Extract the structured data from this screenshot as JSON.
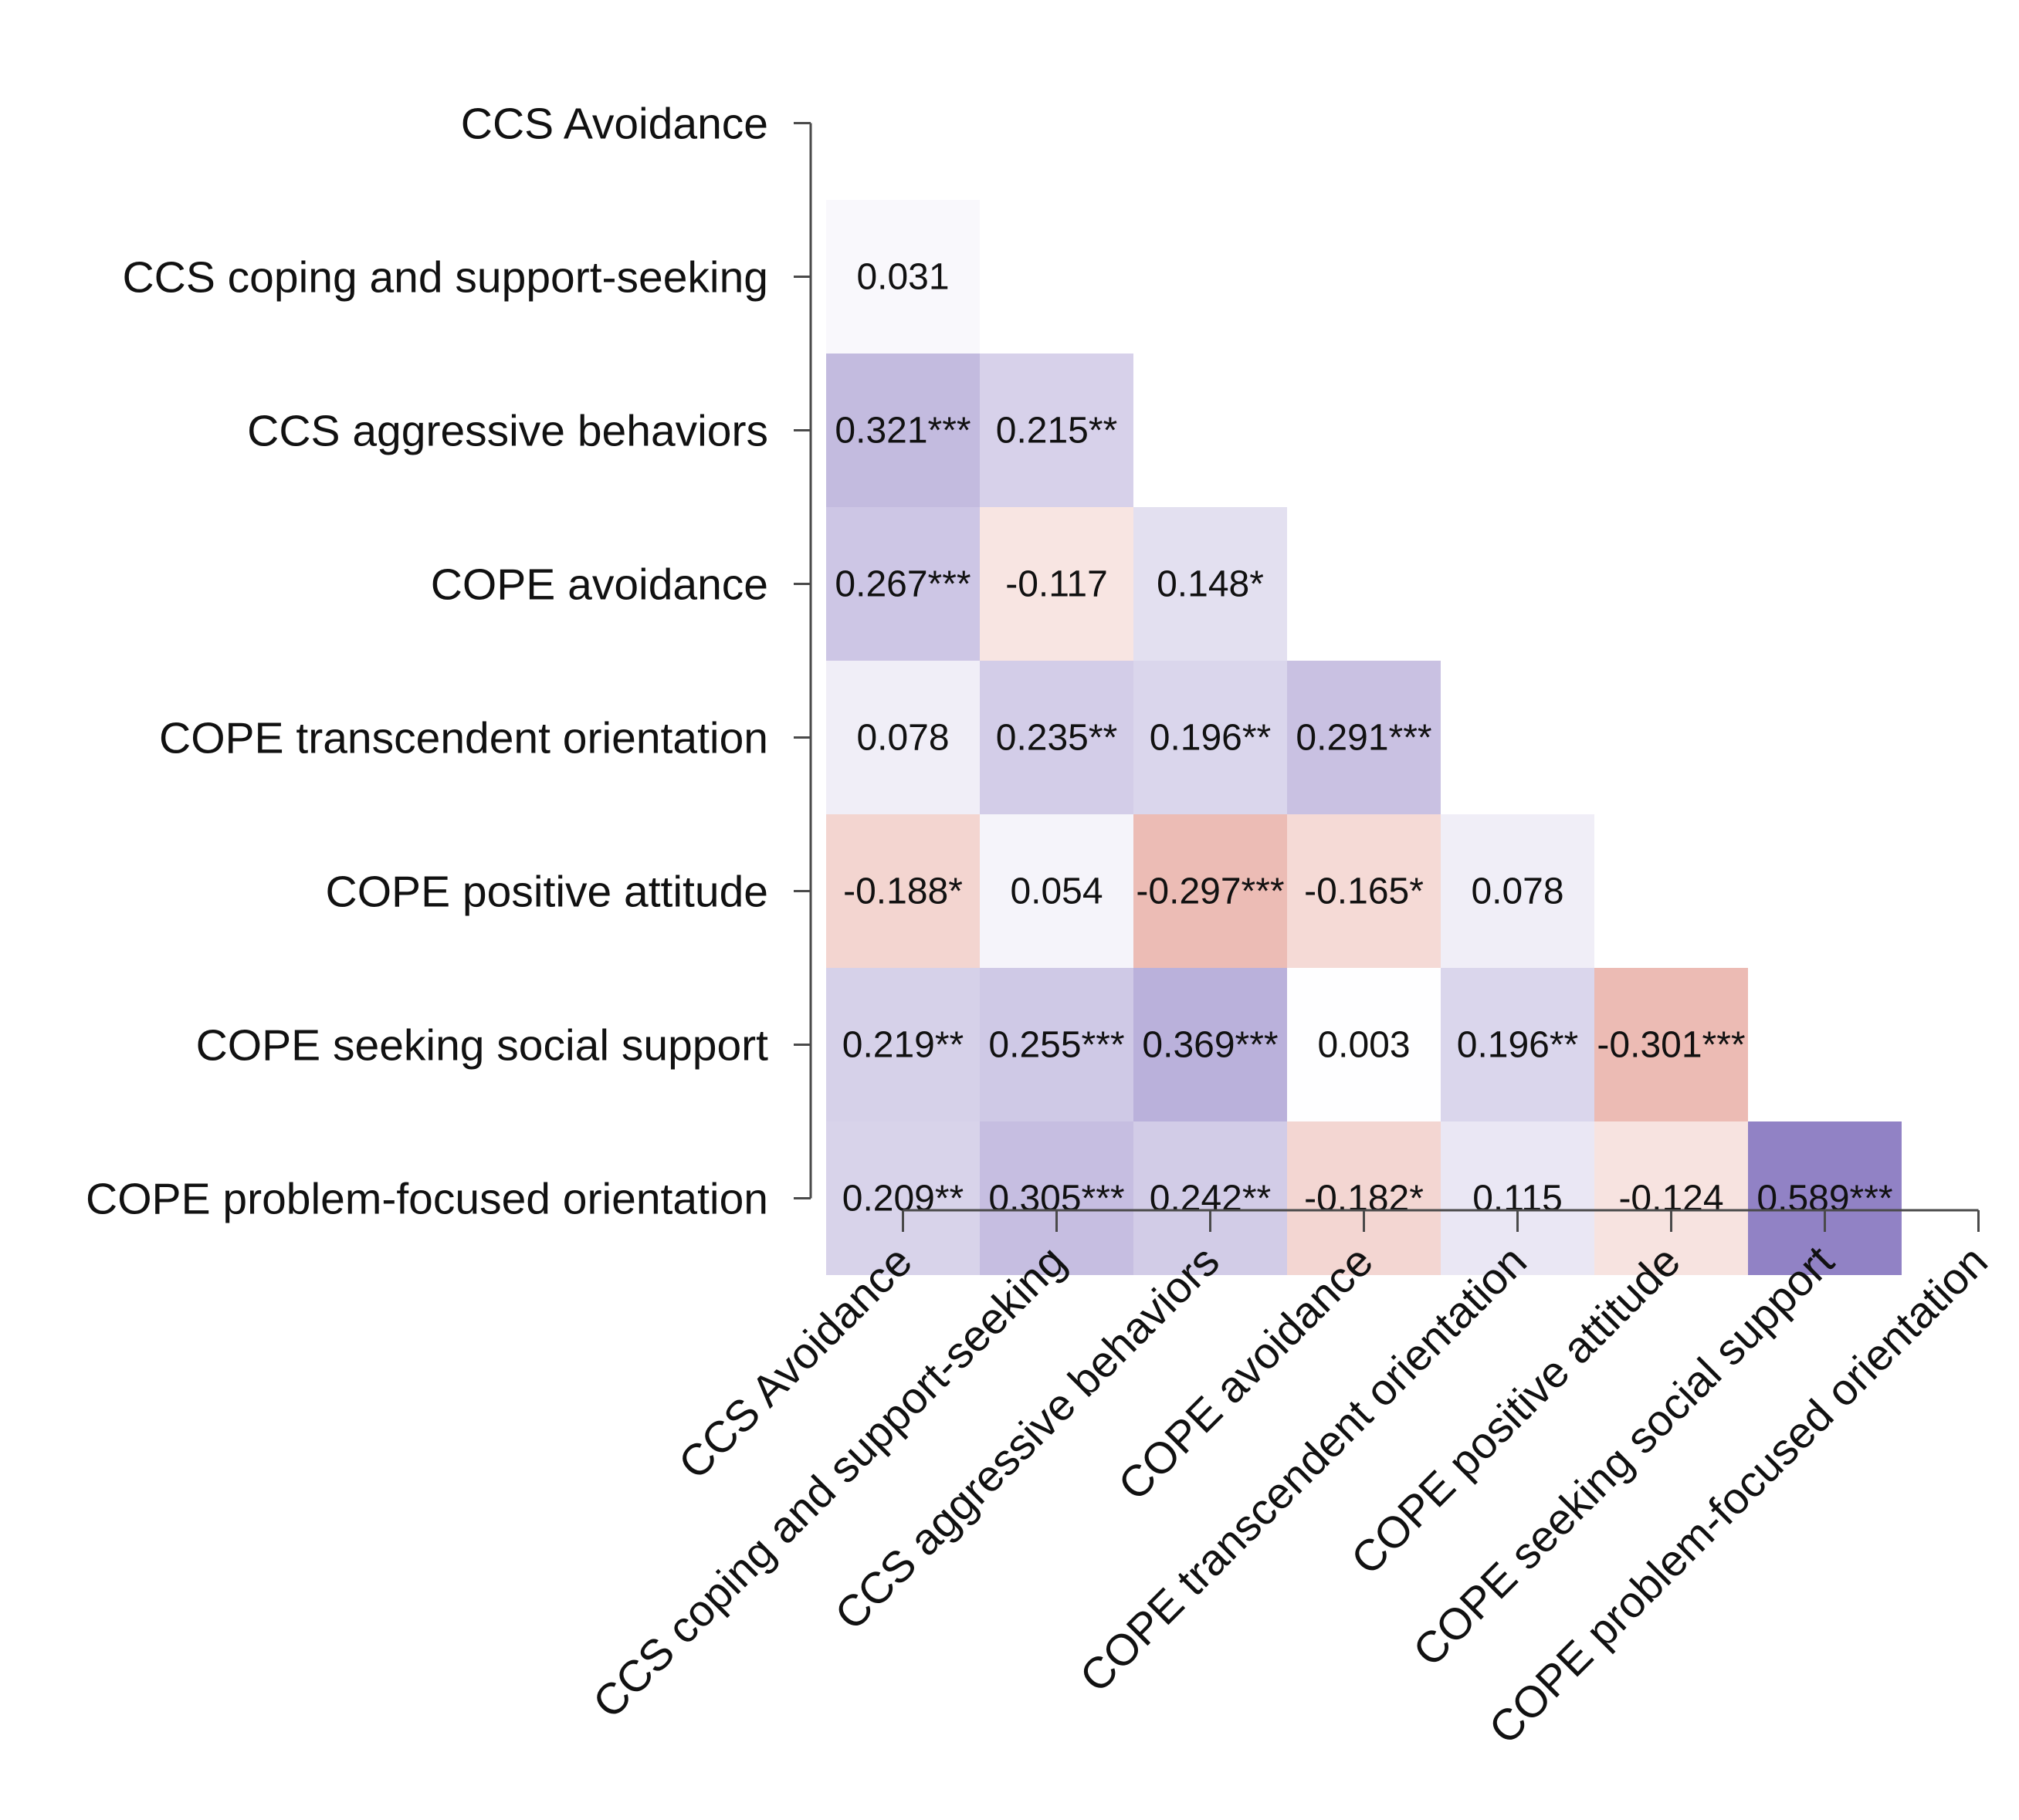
{
  "chart_data": {
    "type": "heatmap",
    "subtype": "lower-triangular correlation matrix",
    "variables": [
      "CCS Avoidance",
      "CCS coping and support-seeking",
      "CCS aggressive behaviors",
      "COPE avoidance",
      "COPE transcendent orientation",
      "COPE positive attitude",
      "COPE seeking social support",
      "COPE problem-focused orientation"
    ],
    "cells": [
      {
        "row": 1,
        "col": 0,
        "value": 0.031,
        "label": "0.031"
      },
      {
        "row": 2,
        "col": 0,
        "value": 0.321,
        "label": "0.321***"
      },
      {
        "row": 2,
        "col": 1,
        "value": 0.215,
        "label": "0.215**"
      },
      {
        "row": 3,
        "col": 0,
        "value": 0.267,
        "label": "0.267***"
      },
      {
        "row": 3,
        "col": 1,
        "value": -0.117,
        "label": "-0.117"
      },
      {
        "row": 3,
        "col": 2,
        "value": 0.148,
        "label": "0.148*"
      },
      {
        "row": 4,
        "col": 0,
        "value": 0.078,
        "label": "0.078"
      },
      {
        "row": 4,
        "col": 1,
        "value": 0.235,
        "label": "0.235**"
      },
      {
        "row": 4,
        "col": 2,
        "value": 0.196,
        "label": "0.196**"
      },
      {
        "row": 4,
        "col": 3,
        "value": 0.291,
        "label": "0.291***"
      },
      {
        "row": 5,
        "col": 0,
        "value": -0.188,
        "label": "-0.188*"
      },
      {
        "row": 5,
        "col": 1,
        "value": 0.054,
        "label": "0.054"
      },
      {
        "row": 5,
        "col": 2,
        "value": -0.297,
        "label": "-0.297***"
      },
      {
        "row": 5,
        "col": 3,
        "value": -0.165,
        "label": "-0.165*"
      },
      {
        "row": 5,
        "col": 4,
        "value": 0.078,
        "label": "0.078"
      },
      {
        "row": 6,
        "col": 0,
        "value": 0.219,
        "label": "0.219**"
      },
      {
        "row": 6,
        "col": 1,
        "value": 0.255,
        "label": "0.255***"
      },
      {
        "row": 6,
        "col": 2,
        "value": 0.369,
        "label": "0.369***"
      },
      {
        "row": 6,
        "col": 3,
        "value": 0.003,
        "label": "0.003"
      },
      {
        "row": 6,
        "col": 4,
        "value": 0.196,
        "label": "0.196**"
      },
      {
        "row": 6,
        "col": 5,
        "value": -0.301,
        "label": "-0.301***"
      },
      {
        "row": 7,
        "col": 0,
        "value": 0.209,
        "label": "0.209**"
      },
      {
        "row": 7,
        "col": 1,
        "value": 0.305,
        "label": "0.305***"
      },
      {
        "row": 7,
        "col": 2,
        "value": 0.242,
        "label": "0.242**"
      },
      {
        "row": 7,
        "col": 3,
        "value": -0.182,
        "label": "-0.182*"
      },
      {
        "row": 7,
        "col": 4,
        "value": 0.115,
        "label": "0.115"
      },
      {
        "row": 7,
        "col": 5,
        "value": -0.124,
        "label": "-0.124"
      },
      {
        "row": 7,
        "col": 6,
        "value": 0.589,
        "label": "0.589***"
      }
    ],
    "color_scale": {
      "positive": "#8f80c4",
      "negative": "#d9786a",
      "zero": "#ffffff",
      "max_abs": 0.6
    },
    "title": "",
    "xlabel": "",
    "ylabel": "",
    "legend": "none"
  }
}
